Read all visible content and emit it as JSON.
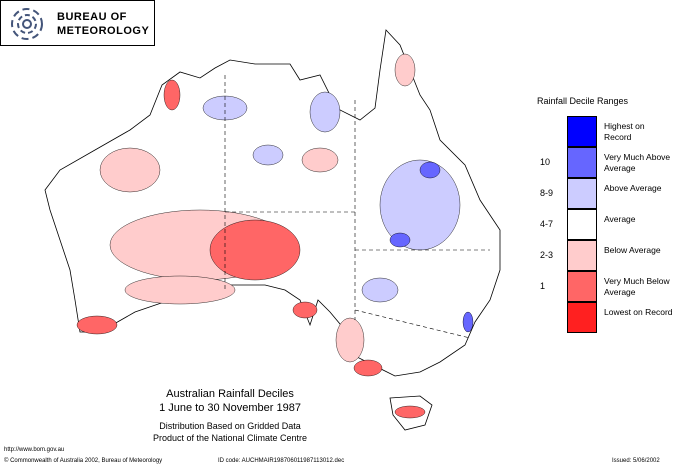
{
  "header": {
    "agency": [
      "BUREAU OF",
      "METEOROLOGY"
    ]
  },
  "legend": {
    "title": "Rainfall Decile Ranges",
    "items": [
      {
        "label": "Highest on Record",
        "color": "#0000ff"
      },
      {
        "decile": "10",
        "label": "Very Much Above Average",
        "color": "#6666ff"
      },
      {
        "decile": "8-9",
        "label": "Above Average",
        "color": "#ccccff"
      },
      {
        "decile": "4-7",
        "label": "Average",
        "color": "#ffffff"
      },
      {
        "decile": "2-3",
        "label": "Below Average",
        "color": "#ffcccc"
      },
      {
        "decile": "1",
        "label": "Very Much Below Average",
        "color": "#ff6666"
      },
      {
        "label": "Lowest on Record",
        "color": "#ff2020"
      }
    ]
  },
  "map": {
    "title": "Australian Rainfall Deciles",
    "period": "1 June to 30 November 1987",
    "notes": [
      "Distribution Based on Gridded Data",
      "Product of the National Climate Centre"
    ]
  },
  "footer": {
    "url": "http://www.bom.gov.au",
    "copyright": "© Commonwealth of Australia 2002, Bureau of Meteorology",
    "id_code": "ID code: AUCHMAIR198706011987113012.dec",
    "issued": "Issued: 5/06/2002"
  }
}
